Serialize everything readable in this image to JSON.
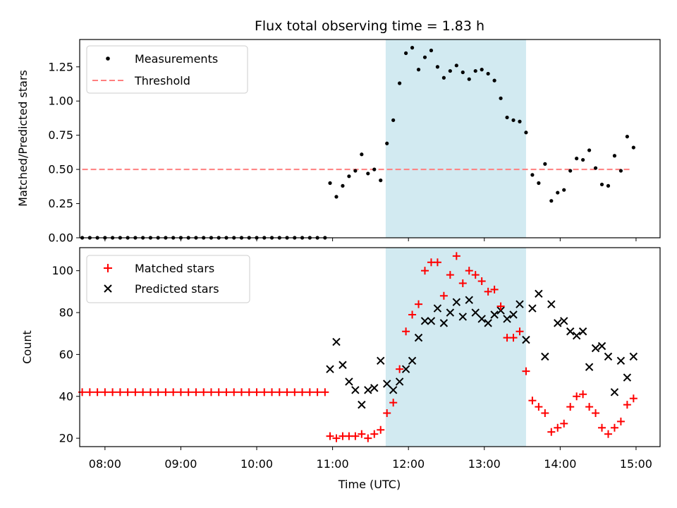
{
  "chart_data": [
    {
      "type": "scatter",
      "title": "Flux total observing time = 1.83 h",
      "xlabel": "",
      "ylabel": "Matched/Predicted stars",
      "xlim": [
        "07:40",
        "15:19"
      ],
      "ylim": [
        0,
        1.45
      ],
      "yticks": [
        "0.00",
        "0.25",
        "0.50",
        "0.75",
        "1.00",
        "1.25"
      ],
      "legend": {
        "placement": "top-left",
        "entries": [
          "Measurements",
          "Threshold"
        ]
      },
      "shaded_region": {
        "x": [
          "11:42",
          "13:33"
        ],
        "color": "#add8e6"
      },
      "threshold": {
        "name": "Threshold",
        "y": 0.5,
        "x": [
          "07:42",
          "14:57"
        ],
        "color": "#ff7f7f"
      },
      "series": [
        {
          "name": "Measurements",
          "color": "#000000",
          "x": [
            "07:42",
            "07:48",
            "07:54",
            "08:00",
            "08:06",
            "08:12",
            "08:18",
            "08:24",
            "08:30",
            "08:36",
            "08:42",
            "08:48",
            "08:54",
            "09:00",
            "09:06",
            "09:12",
            "09:18",
            "09:24",
            "09:30",
            "09:36",
            "09:42",
            "09:48",
            "09:54",
            "10:00",
            "10:06",
            "10:12",
            "10:18",
            "10:24",
            "10:30",
            "10:36",
            "10:42",
            "10:48",
            "10:54",
            "10:58",
            "11:03",
            "11:08",
            "11:13",
            "11:18",
            "11:23",
            "11:28",
            "11:33",
            "11:38",
            "11:43",
            "11:48",
            "11:53",
            "11:58",
            "12:03",
            "12:08",
            "12:13",
            "12:18",
            "12:23",
            "12:28",
            "12:33",
            "12:38",
            "12:43",
            "12:48",
            "12:53",
            "12:58",
            "13:03",
            "13:08",
            "13:13",
            "13:18",
            "13:23",
            "13:28",
            "13:33",
            "13:38",
            "13:43",
            "13:48",
            "13:53",
            "13:58",
            "14:03",
            "14:08",
            "14:13",
            "14:18",
            "14:23",
            "14:28",
            "14:33",
            "14:38",
            "14:43",
            "14:48",
            "14:53",
            "14:58"
          ],
          "y": [
            0,
            0,
            0,
            0,
            0,
            0,
            0,
            0,
            0,
            0,
            0,
            0,
            0,
            0,
            0,
            0,
            0,
            0,
            0,
            0,
            0,
            0,
            0,
            0,
            0,
            0,
            0,
            0,
            0,
            0,
            0,
            0,
            0,
            0.4,
            0.3,
            0.38,
            0.45,
            0.49,
            0.61,
            0.47,
            0.5,
            0.42,
            0.69,
            0.86,
            1.13,
            1.35,
            1.39,
            1.23,
            1.32,
            1.37,
            1.25,
            1.17,
            1.22,
            1.26,
            1.21,
            1.16,
            1.22,
            1.23,
            1.2,
            1.15,
            1.02,
            0.88,
            0.86,
            0.85,
            0.77,
            0.46,
            0.4,
            0.54,
            0.27,
            0.33,
            0.35,
            0.49,
            0.58,
            0.57,
            0.64,
            0.51,
            0.39,
            0.38,
            0.6,
            0.49,
            0.74,
            0.66
          ]
        }
      ]
    },
    {
      "type": "scatter",
      "title": "",
      "xlabel": "Time (UTC)",
      "ylabel": "Count",
      "xlim": [
        "07:40",
        "15:19"
      ],
      "ylim": [
        16,
        111
      ],
      "yticks": [
        "20",
        "40",
        "60",
        "80",
        "100"
      ],
      "xticks": [
        "08:00",
        "09:00",
        "10:00",
        "11:00",
        "12:00",
        "13:00",
        "14:00",
        "15:00"
      ],
      "legend": {
        "placement": "top-left",
        "entries": [
          "Matched stars",
          "Predicted stars"
        ]
      },
      "shaded_region": {
        "x": [
          "11:42",
          "13:33"
        ],
        "color": "#add8e6"
      },
      "series": [
        {
          "name": "Matched stars",
          "marker": "plus",
          "color": "#ff0000",
          "x": [
            "07:42",
            "07:48",
            "07:54",
            "08:00",
            "08:06",
            "08:12",
            "08:18",
            "08:24",
            "08:30",
            "08:36",
            "08:42",
            "08:48",
            "08:54",
            "09:00",
            "09:06",
            "09:12",
            "09:18",
            "09:24",
            "09:30",
            "09:36",
            "09:42",
            "09:48",
            "09:54",
            "10:00",
            "10:06",
            "10:12",
            "10:18",
            "10:24",
            "10:30",
            "10:36",
            "10:42",
            "10:48",
            "10:54",
            "10:58",
            "11:03",
            "11:08",
            "11:13",
            "11:18",
            "11:23",
            "11:28",
            "11:33",
            "11:38",
            "11:43",
            "11:48",
            "11:53",
            "11:58",
            "12:03",
            "12:08",
            "12:13",
            "12:18",
            "12:23",
            "12:28",
            "12:33",
            "12:38",
            "12:43",
            "12:48",
            "12:53",
            "12:58",
            "13:03",
            "13:08",
            "13:13",
            "13:18",
            "13:23",
            "13:28",
            "13:33",
            "13:38",
            "13:43",
            "13:48",
            "13:53",
            "13:58",
            "14:03",
            "14:08",
            "14:13",
            "14:18",
            "14:23",
            "14:28",
            "14:33",
            "14:38",
            "14:43",
            "14:48",
            "14:53",
            "14:58"
          ],
          "y": [
            42,
            42,
            42,
            42,
            42,
            42,
            42,
            42,
            42,
            42,
            42,
            42,
            42,
            42,
            42,
            42,
            42,
            42,
            42,
            42,
            42,
            42,
            42,
            42,
            42,
            42,
            42,
            42,
            42,
            42,
            42,
            42,
            42,
            21,
            20,
            21,
            21,
            21,
            22,
            20,
            22,
            24,
            32,
            37,
            53,
            71,
            79,
            84,
            100,
            104,
            104,
            88,
            98,
            107,
            94,
            100,
            98,
            95,
            90,
            91,
            83,
            68,
            68,
            71,
            52,
            38,
            35,
            32,
            23,
            25,
            27,
            35,
            40,
            41,
            35,
            32,
            25,
            22,
            25,
            28,
            36,
            39
          ]
        },
        {
          "name": "Predicted stars",
          "marker": "x",
          "color": "#000000",
          "x": [
            "10:58",
            "11:03",
            "11:08",
            "11:13",
            "11:18",
            "11:23",
            "11:28",
            "11:33",
            "11:38",
            "11:43",
            "11:48",
            "11:53",
            "11:58",
            "12:03",
            "12:08",
            "12:13",
            "12:18",
            "12:23",
            "12:28",
            "12:33",
            "12:38",
            "12:43",
            "12:48",
            "12:53",
            "12:58",
            "13:03",
            "13:08",
            "13:13",
            "13:18",
            "13:23",
            "13:28",
            "13:33",
            "13:38",
            "13:43",
            "13:48",
            "13:53",
            "13:58",
            "14:03",
            "14:08",
            "14:13",
            "14:18",
            "14:23",
            "14:28",
            "14:33",
            "14:38",
            "14:43",
            "14:48",
            "14:53",
            "14:58"
          ],
          "y": [
            53,
            66,
            55,
            47,
            43,
            36,
            43,
            44,
            57,
            46,
            43,
            47,
            53,
            57,
            68,
            76,
            76,
            82,
            75,
            80,
            85,
            78,
            86,
            80,
            77,
            75,
            79,
            81,
            77,
            79,
            84,
            67,
            82,
            89,
            59,
            84,
            75,
            76,
            71,
            69,
            71,
            54,
            63,
            64,
            59,
            42,
            57,
            49,
            59
          ]
        }
      ]
    }
  ]
}
